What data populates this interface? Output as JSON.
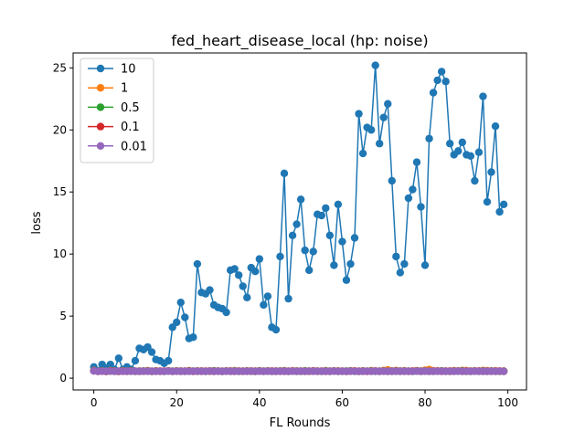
{
  "chart_data": {
    "type": "line",
    "title": "fed_heart_disease_local (hp: noise)",
    "xlabel": "FL Rounds",
    "ylabel": "loss",
    "xlim": [
      -5,
      104.5
    ],
    "ylim": [
      -0.95,
      26.2
    ],
    "xticks": [
      0,
      20,
      40,
      60,
      80,
      100
    ],
    "yticks": [
      0,
      5,
      10,
      15,
      20,
      25
    ],
    "grid": false,
    "legend_position": "top-left",
    "x": [
      0,
      1,
      2,
      3,
      4,
      5,
      6,
      7,
      8,
      9,
      10,
      11,
      12,
      13,
      14,
      15,
      16,
      17,
      18,
      19,
      20,
      21,
      22,
      23,
      24,
      25,
      26,
      27,
      28,
      29,
      30,
      31,
      32,
      33,
      34,
      35,
      36,
      37,
      38,
      39,
      40,
      41,
      42,
      43,
      44,
      45,
      46,
      47,
      48,
      49,
      50,
      51,
      52,
      53,
      54,
      55,
      56,
      57,
      58,
      59,
      60,
      61,
      62,
      63,
      64,
      65,
      66,
      67,
      68,
      69,
      70,
      71,
      72,
      73,
      74,
      75,
      76,
      77,
      78,
      79,
      80,
      81,
      82,
      83,
      84,
      85,
      86,
      87,
      88,
      89,
      90,
      91,
      92,
      93,
      94,
      95,
      96,
      97,
      98,
      99
    ],
    "series": [
      {
        "name": "10",
        "color": "#1f77b4",
        "values": [
          0.9,
          0.6,
          1.1,
          0.8,
          1.1,
          0.7,
          1.6,
          0.7,
          0.9,
          0.7,
          1.4,
          2.4,
          2.3,
          2.5,
          2.1,
          1.5,
          1.4,
          1.2,
          1.4,
          4.1,
          4.5,
          6.1,
          4.9,
          3.2,
          3.3,
          9.2,
          6.9,
          6.8,
          7.1,
          5.9,
          5.7,
          5.6,
          5.3,
          8.7,
          8.8,
          8.3,
          7.4,
          6.5,
          8.9,
          8.6,
          9.6,
          5.9,
          6.6,
          4.1,
          3.9,
          9.8,
          16.5,
          6.4,
          11.5,
          12.4,
          14.4,
          10.3,
          8.7,
          10.2,
          13.2,
          13.1,
          13.7,
          11.5,
          9.1,
          14.0,
          11.0,
          7.9,
          9.2,
          11.3,
          21.3,
          18.1,
          20.2,
          20.0,
          25.2,
          18.9,
          21.0,
          22.1,
          15.9,
          9.8,
          8.5,
          9.2,
          14.5,
          15.2,
          17.4,
          13.8,
          9.1,
          19.3,
          23.0,
          24.0,
          24.7,
          23.9,
          18.9,
          18.0,
          18.3,
          19.0,
          18.0,
          17.9,
          15.9,
          18.2,
          22.7,
          14.2,
          16.6,
          20.3,
          13.4,
          14.0
        ]
      },
      {
        "name": "1",
        "color": "#ff7f0e",
        "values": [
          0.62,
          0.55,
          0.58,
          0.54,
          0.6,
          0.57,
          0.55,
          0.59,
          0.56,
          0.58,
          0.55,
          0.57,
          0.56,
          0.6,
          0.55,
          0.58,
          0.57,
          0.56,
          0.59,
          0.55,
          0.58,
          0.57,
          0.56,
          0.6,
          0.55,
          0.57,
          0.58,
          0.56,
          0.55,
          0.59,
          0.57,
          0.56,
          0.58,
          0.55,
          0.6,
          0.57,
          0.56,
          0.58,
          0.55,
          0.57,
          0.59,
          0.56,
          0.58,
          0.55,
          0.57,
          0.56,
          0.6,
          0.55,
          0.58,
          0.57,
          0.56,
          0.59,
          0.55,
          0.58,
          0.57,
          0.56,
          0.6,
          0.55,
          0.57,
          0.58,
          0.56,
          0.55,
          0.59,
          0.57,
          0.56,
          0.58,
          0.55,
          0.6,
          0.57,
          0.56,
          0.62,
          0.66,
          0.58,
          0.61,
          0.57,
          0.59,
          0.56,
          0.58,
          0.6,
          0.57,
          0.64,
          0.69,
          0.6,
          0.57,
          0.59,
          0.56,
          0.58,
          0.6,
          0.57,
          0.62,
          0.61,
          0.57,
          0.59,
          0.56,
          0.62,
          0.6,
          0.58,
          0.59,
          0.55,
          0.57
        ]
      },
      {
        "name": "0.5",
        "color": "#2ca02c",
        "values": [
          0.6,
          0.56,
          0.57,
          0.55,
          0.58,
          0.56,
          0.55,
          0.57,
          0.56,
          0.57,
          0.55,
          0.56,
          0.57,
          0.58,
          0.55,
          0.57,
          0.56,
          0.55,
          0.58,
          0.56,
          0.57,
          0.56,
          0.55,
          0.58,
          0.56,
          0.57,
          0.56,
          0.55,
          0.57,
          0.58,
          0.56,
          0.55,
          0.57,
          0.56,
          0.58,
          0.55,
          0.56,
          0.57,
          0.56,
          0.55,
          0.58,
          0.56,
          0.57,
          0.55,
          0.56,
          0.57,
          0.58,
          0.55,
          0.56,
          0.57,
          0.55,
          0.58,
          0.56,
          0.57,
          0.56,
          0.55,
          0.58,
          0.56,
          0.57,
          0.56,
          0.55,
          0.57,
          0.58,
          0.56,
          0.55,
          0.57,
          0.56,
          0.58,
          0.55,
          0.56,
          0.57,
          0.56,
          0.55,
          0.58,
          0.56,
          0.57,
          0.56,
          0.55,
          0.58,
          0.56,
          0.57,
          0.56,
          0.55,
          0.57,
          0.58,
          0.56,
          0.55,
          0.57,
          0.56,
          0.58,
          0.55,
          0.56,
          0.57,
          0.56,
          0.58,
          0.55,
          0.57,
          0.56,
          0.55,
          0.56
        ]
      },
      {
        "name": "0.1",
        "color": "#d62728",
        "values": [
          0.59,
          0.55,
          0.56,
          0.55,
          0.57,
          0.56,
          0.55,
          0.56,
          0.55,
          0.57,
          0.56,
          0.55,
          0.56,
          0.57,
          0.55,
          0.56,
          0.55,
          0.56,
          0.57,
          0.55,
          0.56,
          0.55,
          0.56,
          0.57,
          0.55,
          0.56,
          0.55,
          0.56,
          0.57,
          0.55,
          0.56,
          0.55,
          0.56,
          0.57,
          0.55,
          0.56,
          0.55,
          0.56,
          0.57,
          0.55,
          0.56,
          0.55,
          0.56,
          0.57,
          0.55,
          0.56,
          0.55,
          0.56,
          0.57,
          0.55,
          0.56,
          0.55,
          0.56,
          0.57,
          0.55,
          0.56,
          0.55,
          0.56,
          0.57,
          0.55,
          0.56,
          0.55,
          0.56,
          0.57,
          0.55,
          0.56,
          0.55,
          0.56,
          0.57,
          0.55,
          0.56,
          0.55,
          0.56,
          0.57,
          0.55,
          0.56,
          0.55,
          0.56,
          0.57,
          0.55,
          0.56,
          0.55,
          0.56,
          0.57,
          0.55,
          0.56,
          0.55,
          0.56,
          0.57,
          0.55,
          0.56,
          0.55,
          0.56,
          0.57,
          0.55,
          0.56,
          0.55,
          0.56,
          0.57,
          0.55
        ]
      },
      {
        "name": "0.01",
        "color": "#9467bd",
        "values": [
          0.58,
          0.55,
          0.56,
          0.55,
          0.56,
          0.55,
          0.56,
          0.55,
          0.56,
          0.55,
          0.56,
          0.55,
          0.56,
          0.55,
          0.56,
          0.55,
          0.56,
          0.55,
          0.56,
          0.55,
          0.56,
          0.55,
          0.56,
          0.55,
          0.56,
          0.55,
          0.56,
          0.55,
          0.56,
          0.55,
          0.56,
          0.55,
          0.56,
          0.55,
          0.56,
          0.55,
          0.56,
          0.55,
          0.56,
          0.55,
          0.56,
          0.55,
          0.56,
          0.55,
          0.56,
          0.55,
          0.56,
          0.55,
          0.56,
          0.55,
          0.56,
          0.55,
          0.56,
          0.55,
          0.56,
          0.55,
          0.56,
          0.55,
          0.56,
          0.55,
          0.56,
          0.55,
          0.56,
          0.55,
          0.56,
          0.55,
          0.56,
          0.55,
          0.56,
          0.55,
          0.56,
          0.55,
          0.56,
          0.55,
          0.56,
          0.55,
          0.56,
          0.55,
          0.56,
          0.55,
          0.56,
          0.55,
          0.56,
          0.55,
          0.56,
          0.55,
          0.56,
          0.55,
          0.56,
          0.55,
          0.56,
          0.55,
          0.56,
          0.55,
          0.56,
          0.55,
          0.56,
          0.55,
          0.56,
          0.55
        ]
      }
    ]
  }
}
